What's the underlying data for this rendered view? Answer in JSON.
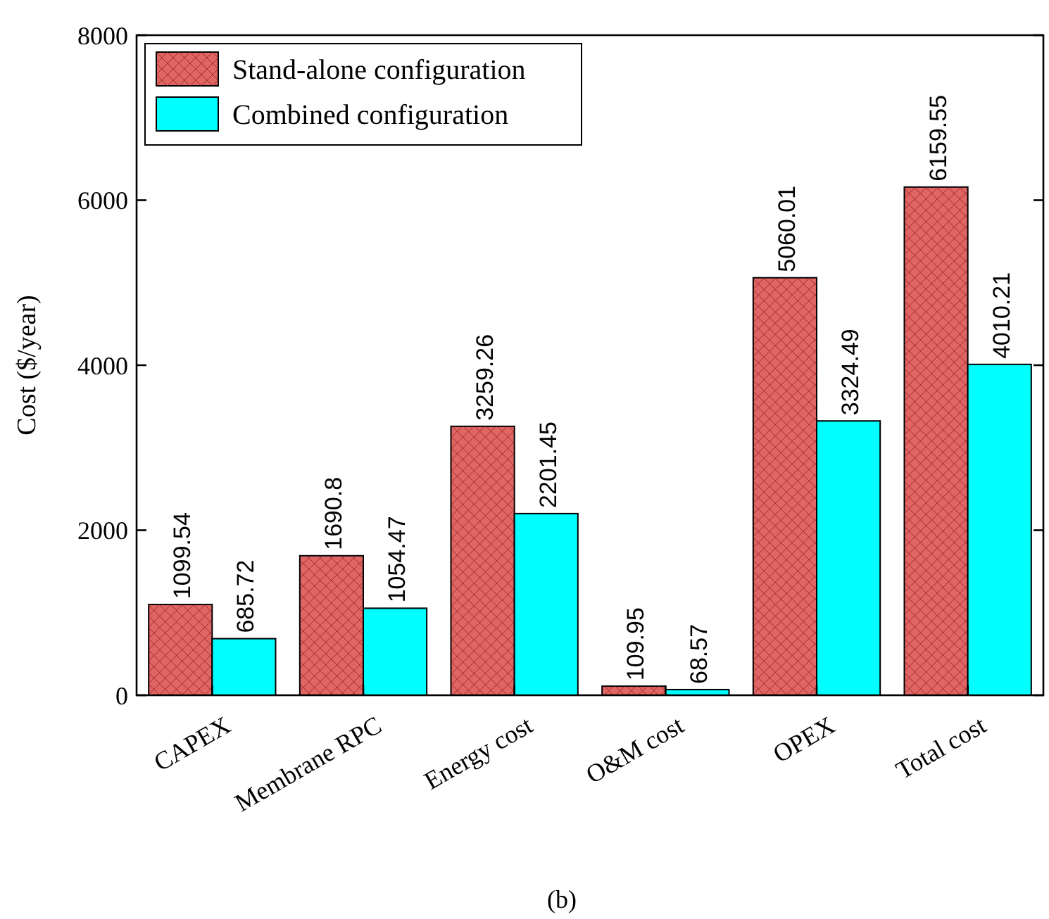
{
  "chart_data": {
    "type": "bar",
    "ylabel": "Cost ($/year)",
    "categories": [
      "CAPEX",
      "Membrane RPC",
      "Energy cost",
      "O&M cost",
      "OPEX",
      "Total cost"
    ],
    "series": [
      {
        "name": "Stand-alone configuration",
        "color": "#e06666",
        "values": [
          1099.54,
          1690.8,
          3259.26,
          109.95,
          5060.01,
          6159.55
        ]
      },
      {
        "name": "Combined configuration",
        "color": "#00ffff",
        "values": [
          685.72,
          1054.47,
          2201.45,
          68.57,
          3324.49,
          4010.21
        ]
      }
    ],
    "ylim": [
      0,
      8000
    ],
    "yticks": [
      0,
      2000,
      4000,
      6000,
      8000
    ],
    "grid": false,
    "legend": "top left",
    "data_labels": true,
    "annotations": [
      "(b)"
    ]
  }
}
